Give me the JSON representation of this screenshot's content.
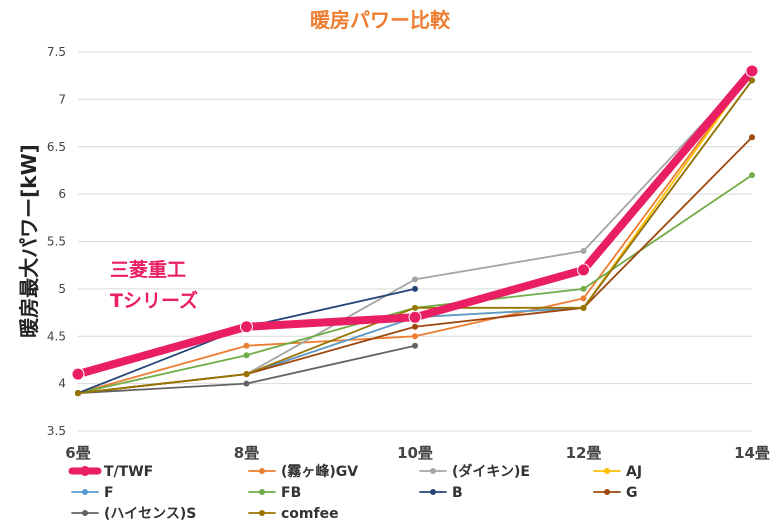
{
  "chart_data": {
    "type": "line",
    "title": "暖房パワー比較",
    "ylabel": "暖房最大パワー[kW]",
    "xlabel": "",
    "ylim": [
      3.5,
      7.5
    ],
    "yticks": [
      "3.5",
      "4",
      "4.5",
      "5",
      "5.5",
      "6",
      "6.5",
      "7",
      "7.5"
    ],
    "categories": [
      "6畳",
      "8畳",
      "10畳",
      "12畳",
      "14畳"
    ],
    "grid": "horizontal",
    "legend_position": "bottom",
    "annotation": [
      "三菱重工",
      "Tシリーズ"
    ],
    "series": [
      {
        "name": "T/TWF",
        "color": "#E91E63",
        "values": [
          4.1,
          4.6,
          4.7,
          5.2,
          7.3
        ]
      },
      {
        "name": "(霧ヶ峰)GV",
        "color": "#ED7D31",
        "values": [
          3.9,
          4.4,
          4.5,
          4.9,
          7.3
        ]
      },
      {
        "name": "(ダイキン)E",
        "color": "#A5A5A5",
        "values": [
          3.9,
          4.1,
          5.1,
          5.4,
          7.3
        ]
      },
      {
        "name": "AJ",
        "color": "#FFC000",
        "values": [
          3.9,
          4.1,
          4.7,
          4.8,
          7.3
        ]
      },
      {
        "name": "F",
        "color": "#5B9BD5",
        "values": [
          3.9,
          4.1,
          4.7,
          4.8,
          7.2
        ]
      },
      {
        "name": "FB",
        "color": "#70AD47",
        "values": [
          3.9,
          4.3,
          4.8,
          5.0,
          6.2
        ]
      },
      {
        "name": "B",
        "color": "#264478",
        "values": [
          3.9,
          4.6,
          5.0,
          null,
          null
        ]
      },
      {
        "name": "G",
        "color": "#9E480E",
        "values": [
          3.9,
          4.1,
          4.6,
          4.8,
          6.6
        ]
      },
      {
        "name": "(ハイセンス)S",
        "color": "#636363",
        "values": [
          3.9,
          4.0,
          4.4,
          null,
          null
        ]
      },
      {
        "name": "comfee",
        "color": "#997300",
        "values": [
          3.9,
          4.1,
          4.8,
          4.8,
          7.2
        ]
      }
    ]
  }
}
